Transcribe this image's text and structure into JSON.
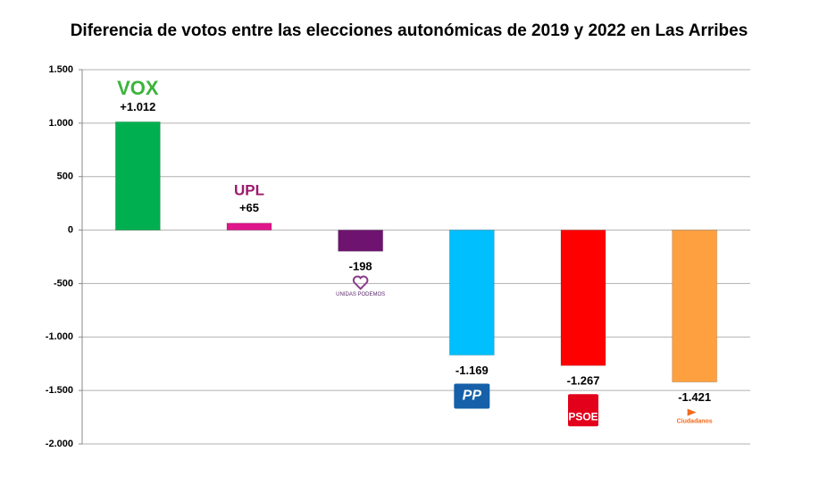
{
  "chart_data": {
    "type": "bar",
    "title": "Diferencia de votos entre las elecciones autonómicas de 2019 y 2022 en Las Arribes",
    "categories": [
      "VOX",
      "UPL",
      "UNIDAS PODEMOS",
      "PP",
      "PSOE",
      "Ciudadanos"
    ],
    "values": [
      1012,
      65,
      -198,
      -1169,
      -1267,
      -1421
    ],
    "value_labels": [
      "+1.012",
      "+65",
      "-198",
      "-1.169",
      "-1.267",
      "-1.421"
    ],
    "colors": [
      "#00b050",
      "#e0168c",
      "#6e1470",
      "#00bfff",
      "#ff0000",
      "#ffa040"
    ],
    "ylim": [
      -2000,
      1500
    ],
    "yticks": [
      {
        "value": -2000,
        "label": "-2.000"
      },
      {
        "value": -1500,
        "label": "-1.500"
      },
      {
        "value": -1000,
        "label": "-1.000"
      },
      -500,
      0,
      500,
      {
        "value": 1000,
        "label": "1.000"
      },
      {
        "value": 1500,
        "label": "1.500"
      }
    ],
    "grid": true
  }
}
